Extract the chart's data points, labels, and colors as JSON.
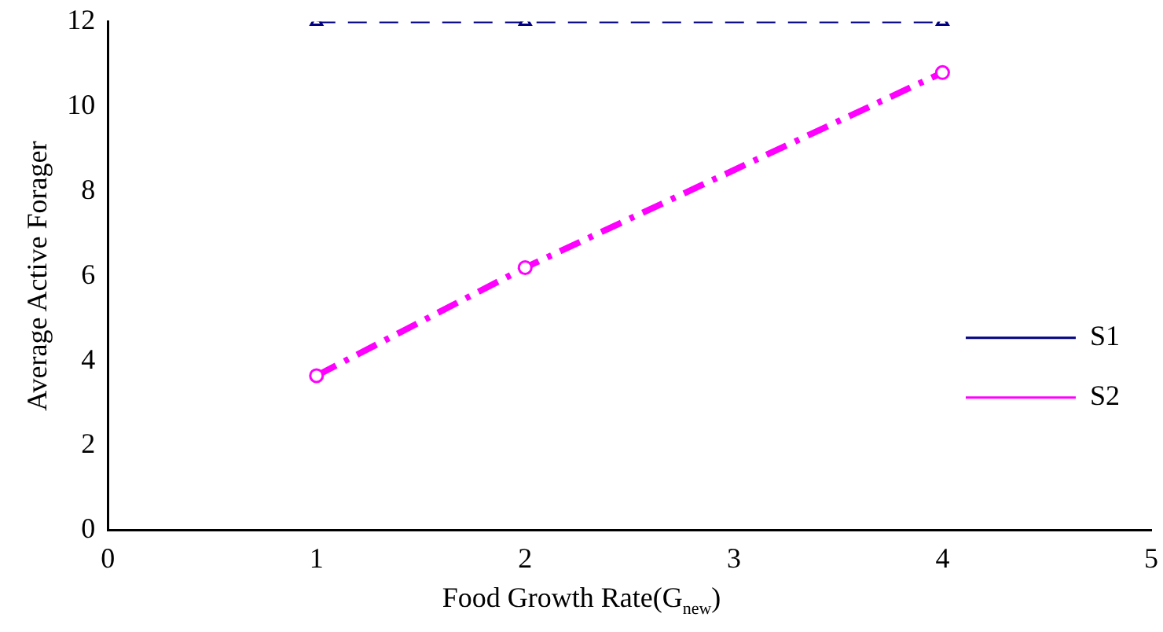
{
  "chart_data": {
    "type": "line",
    "xlabel": "Food Growth Rate(G$_{new}$)",
    "ylabel": "Average Active Forager",
    "x": [
      1,
      2,
      4
    ],
    "series": [
      {
        "name": "S1",
        "color": "#000080",
        "values": [
          12,
          12,
          12
        ],
        "marker": "triangle",
        "line_style": "dashed"
      },
      {
        "name": "S2",
        "color": "#ff00ff",
        "values": [
          3.65,
          6.2,
          10.8
        ],
        "marker": "circle",
        "line_style": "dashdot"
      }
    ],
    "xlim": [
      0,
      5
    ],
    "xticks": [
      0,
      1,
      2,
      3,
      4,
      5
    ],
    "ylim": [
      0,
      12
    ],
    "yticks": [
      0,
      2,
      4,
      6,
      8,
      10,
      12
    ],
    "grid": false,
    "legend": "right"
  }
}
